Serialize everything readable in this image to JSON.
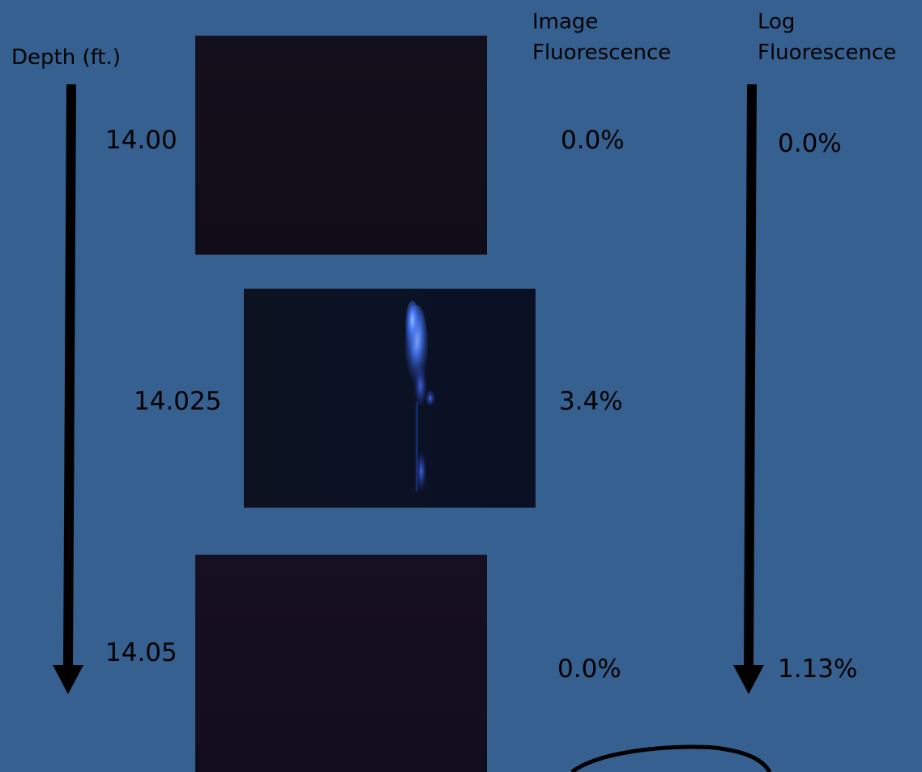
{
  "headers": {
    "depth": "Depth (ft.)",
    "image_fluorescence": "Image\nFluorescence",
    "log_fluorescence": "Log\nFluorescence"
  },
  "rows": [
    {
      "depth": "14.00",
      "image_fluorescence": "0.0%",
      "log_fluorescence": "0.0%"
    },
    {
      "depth": "14.025",
      "image_fluorescence": "3.4%"
    },
    {
      "depth": "14.05",
      "image_fluorescence": "0.0%",
      "log_fluorescence": "1.13%"
    }
  ],
  "colors": {
    "background": "#35608f",
    "arrow": "#000000",
    "fluorescence_glow": "#4a7dff"
  }
}
